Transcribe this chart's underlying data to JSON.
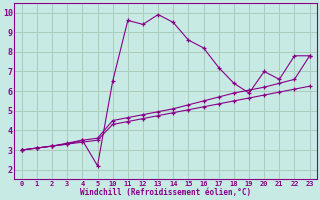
{
  "background_color": "#c8eae4",
  "grid_color": "#aaccbb",
  "line_color": "#880088",
  "xlabel": "Windchill (Refroidissement éolien,°C)",
  "xlim": [
    -0.5,
    19.5
  ],
  "ylim": [
    1.5,
    10.5
  ],
  "xtick_positions": [
    0,
    1,
    2,
    3,
    4,
    5,
    6,
    7,
    8,
    9,
    10,
    11,
    12,
    13,
    14,
    15,
    16,
    17,
    18,
    19
  ],
  "xtick_labels": [
    "0",
    "1",
    "2",
    "3",
    "4",
    "5",
    "10",
    "11",
    "12",
    "13",
    "14",
    "15",
    "16",
    "17",
    "18",
    "19",
    "20",
    "21",
    "22",
    "23"
  ],
  "yticks": [
    2,
    3,
    4,
    5,
    6,
    7,
    8,
    9,
    10
  ],
  "series": [
    {
      "x": [
        0,
        1,
        2,
        3,
        4,
        5,
        6,
        7,
        8,
        9,
        10,
        11,
        12,
        13,
        14,
        15,
        16,
        17,
        18,
        19
      ],
      "y": [
        3.0,
        3.1,
        3.2,
        3.3,
        3.5,
        2.2,
        6.5,
        9.6,
        9.4,
        9.9,
        9.5,
        8.6,
        8.2,
        7.2,
        6.4,
        5.9,
        7.0,
        6.6,
        7.8,
        7.8
      ]
    },
    {
      "x": [
        0,
        1,
        2,
        3,
        4,
        5,
        6,
        7,
        8,
        9,
        10,
        11,
        12,
        13,
        14,
        15,
        16,
        17,
        18,
        19
      ],
      "y": [
        3.0,
        3.1,
        3.2,
        3.35,
        3.5,
        3.6,
        4.5,
        4.65,
        4.8,
        4.95,
        5.1,
        5.3,
        5.5,
        5.7,
        5.9,
        6.05,
        6.2,
        6.4,
        6.6,
        7.8
      ]
    },
    {
      "x": [
        0,
        1,
        2,
        3,
        4,
        5,
        6,
        7,
        8,
        9,
        10,
        11,
        12,
        13,
        14,
        15,
        16,
        17,
        18,
        19
      ],
      "y": [
        3.0,
        3.1,
        3.2,
        3.3,
        3.4,
        3.5,
        4.3,
        4.45,
        4.6,
        4.75,
        4.9,
        5.05,
        5.2,
        5.35,
        5.5,
        5.65,
        5.8,
        5.95,
        6.1,
        6.25
      ]
    }
  ]
}
